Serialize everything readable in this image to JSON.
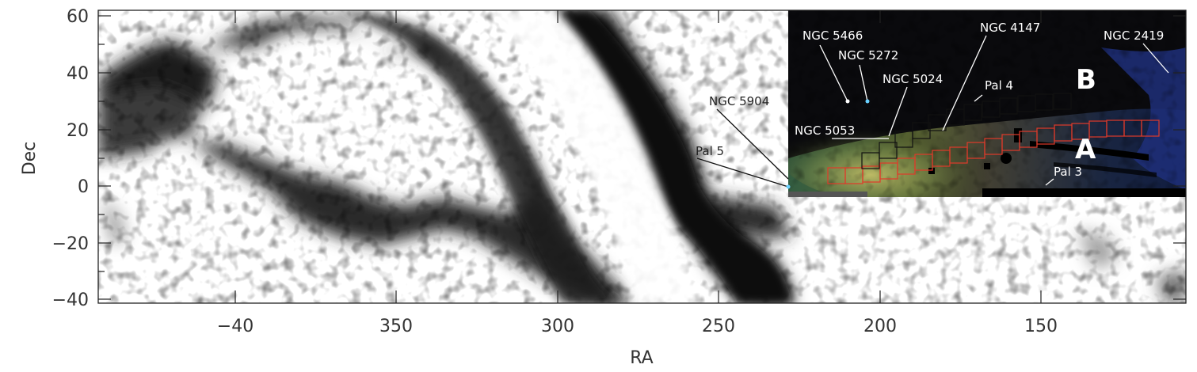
{
  "figure": {
    "xlabel": "RA",
    "ylabel": "Dec",
    "x_ticks": [
      "−40",
      "350",
      "300",
      "250",
      "200",
      "150"
    ],
    "y_ticks": [
      "60",
      "40",
      "20",
      "0",
      "−20",
      "−40"
    ],
    "dec_range": [
      -43,
      63
    ],
    "background_map": "greyscale density map (black = high density)",
    "inset": {
      "image": "colour-composite stellar density map",
      "cluster_labels": [
        {
          "name": "NGC 5466"
        },
        {
          "name": "NGC 5272"
        },
        {
          "name": "NGC 4147"
        },
        {
          "name": "NGC 2419"
        },
        {
          "name": "NGC 5024"
        },
        {
          "name": "Pal 4"
        },
        {
          "name": "NGC 5904"
        },
        {
          "name": "NGC 5053"
        },
        {
          "name": "Pal 5"
        },
        {
          "name": "Pal 3"
        }
      ],
      "stream_labels": [
        {
          "name": "A",
          "color": "#ffffff"
        },
        {
          "name": "B",
          "color": "#ffffff"
        }
      ],
      "box_colors": {
        "stream_A": "#e03a2a",
        "stream_B": "#111111"
      }
    }
  }
}
